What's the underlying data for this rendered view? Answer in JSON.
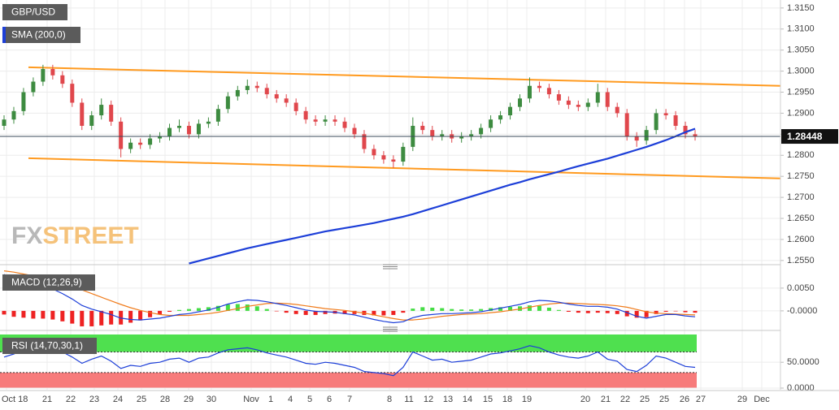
{
  "chart_data": [
    {
      "type": "candlestick",
      "title": "GBP/USD",
      "open": [
        1.287,
        1.2885,
        1.2905,
        1.295,
        1.2975,
        1.3005,
        1.299,
        1.297,
        1.2925,
        1.287,
        1.2895,
        1.292,
        1.288,
        1.2815,
        1.283,
        1.2825,
        1.284,
        1.2845,
        1.2865,
        1.287,
        1.285,
        1.2875,
        1.288,
        1.291,
        1.294,
        1.2955,
        1.2965,
        1.296,
        1.2945,
        1.2935,
        1.2925,
        1.2905,
        1.2885,
        1.288,
        1.2885,
        1.288,
        1.2865,
        1.285,
        1.2815,
        1.28,
        1.279,
        1.2785,
        1.282,
        1.287,
        1.286,
        1.2845,
        1.285,
        1.284,
        1.2845,
        1.285,
        1.2865,
        1.2885,
        1.2895,
        1.2915,
        1.2935,
        1.2965,
        1.296,
        1.2945,
        1.293,
        1.292,
        1.2915,
        1.2925,
        1.295,
        1.2915,
        1.29,
        1.2845,
        1.2835,
        1.286,
        1.29,
        1.2895,
        1.287,
        1.285
      ],
      "high": [
        1.2895,
        1.2915,
        1.296,
        1.2985,
        1.3015,
        1.3015,
        1.3,
        1.298,
        1.2935,
        1.2905,
        1.2935,
        1.293,
        1.289,
        1.284,
        1.284,
        1.285,
        1.2855,
        1.2875,
        1.2885,
        1.288,
        1.2885,
        1.289,
        1.292,
        1.295,
        1.2965,
        1.298,
        1.2975,
        1.297,
        1.2955,
        1.2945,
        1.2935,
        1.2915,
        1.2895,
        1.2895,
        1.2895,
        1.289,
        1.2875,
        1.286,
        1.2825,
        1.281,
        1.28,
        1.283,
        1.289,
        1.288,
        1.287,
        1.286,
        1.286,
        1.2855,
        1.286,
        1.2875,
        1.2895,
        1.2905,
        1.2925,
        1.2945,
        1.2985,
        1.2975,
        1.297,
        1.2955,
        1.294,
        1.293,
        1.2935,
        1.297,
        1.296,
        1.2925,
        1.291,
        1.2855,
        1.287,
        1.291,
        1.291,
        1.2905,
        1.288,
        1.286
      ],
      "low": [
        1.286,
        1.2875,
        1.2895,
        1.294,
        1.2965,
        1.298,
        1.296,
        1.2915,
        1.286,
        1.286,
        1.2885,
        1.287,
        1.2795,
        1.2805,
        1.2815,
        1.2815,
        1.283,
        1.2835,
        1.2855,
        1.284,
        1.284,
        1.2865,
        1.287,
        1.29,
        1.293,
        1.2945,
        1.295,
        1.2935,
        1.2925,
        1.2915,
        1.2895,
        1.2875,
        1.287,
        1.287,
        1.287,
        1.2855,
        1.284,
        1.2805,
        1.279,
        1.278,
        1.277,
        1.2775,
        1.281,
        1.285,
        1.2835,
        1.2835,
        1.283,
        1.283,
        1.2835,
        1.284,
        1.2855,
        1.2875,
        1.2885,
        1.2905,
        1.2925,
        1.295,
        1.2935,
        1.292,
        1.291,
        1.2905,
        1.2905,
        1.2915,
        1.2905,
        1.289,
        1.2835,
        1.282,
        1.2825,
        1.285,
        1.2885,
        1.286,
        1.284,
        1.2835
      ],
      "close": [
        1.2885,
        1.2905,
        1.295,
        1.2975,
        1.3005,
        1.299,
        1.297,
        1.2925,
        1.287,
        1.2895,
        1.292,
        1.288,
        1.2815,
        1.283,
        1.2825,
        1.284,
        1.2845,
        1.2865,
        1.287,
        1.285,
        1.2875,
        1.288,
        1.291,
        1.294,
        1.2955,
        1.2965,
        1.296,
        1.2945,
        1.2935,
        1.2925,
        1.2905,
        1.2885,
        1.288,
        1.2885,
        1.288,
        1.2865,
        1.285,
        1.2815,
        1.28,
        1.279,
        1.2785,
        1.282,
        1.287,
        1.286,
        1.2845,
        1.285,
        1.284,
        1.2845,
        1.285,
        1.2865,
        1.2885,
        1.2895,
        1.2915,
        1.2935,
        1.2965,
        1.296,
        1.2945,
        1.293,
        1.292,
        1.2915,
        1.2925,
        1.295,
        1.2915,
        1.29,
        1.2845,
        1.2835,
        1.286,
        1.29,
        1.2895,
        1.287,
        1.285,
        1.2845
      ],
      "up_color": "#3d8b40",
      "down_color": "#e0474c",
      "overlay": {
        "name": "SMA (200,0)",
        "color": "#1d3fd8",
        "values": [
          null,
          null,
          null,
          null,
          null,
          null,
          null,
          null,
          null,
          null,
          null,
          null,
          null,
          null,
          null,
          null,
          null,
          null,
          null,
          1.2543,
          1.2549,
          1.2555,
          1.2561,
          1.2567,
          1.2573,
          1.2579,
          1.2584,
          1.2589,
          1.2594,
          1.2599,
          1.2604,
          1.2609,
          1.2614,
          1.2619,
          1.2623,
          1.2627,
          1.2631,
          1.2635,
          1.2639,
          1.2644,
          1.2649,
          1.2654,
          1.266,
          1.2667,
          1.2674,
          1.2681,
          1.2688,
          1.2695,
          1.2702,
          1.2709,
          1.2716,
          1.2723,
          1.273,
          1.2736,
          1.2743,
          1.2749,
          1.2755,
          1.2761,
          1.2768,
          1.2774,
          1.278,
          1.2786,
          1.2792,
          1.2799,
          1.2806,
          1.2813,
          1.282,
          1.2828,
          1.2836,
          1.2845,
          1.2855,
          1.2863
        ]
      },
      "channel": {
        "color": "#ff9a1f",
        "upper": [
          1.3009,
          1.2965
        ],
        "lower": [
          1.2793,
          1.2745
        ]
      },
      "last_price": 1.28448,
      "ylim": [
        1.2542,
        1.3169
      ],
      "yticks": [
        {
          "value": 1.255,
          "label": "1.2550"
        },
        {
          "value": 1.26,
          "label": "1.2600"
        },
        {
          "value": 1.265,
          "label": "1.2650"
        },
        {
          "value": 1.27,
          "label": "1.2700"
        },
        {
          "value": 1.275,
          "label": "1.2750"
        },
        {
          "value": 1.28,
          "label": "1.2800"
        },
        {
          "value": 1.285,
          "label": "1.2850"
        },
        {
          "value": 1.29,
          "label": "1.2900"
        },
        {
          "value": 1.295,
          "label": "1.2950"
        },
        {
          "value": 1.3,
          "label": "1.3000"
        },
        {
          "value": 1.305,
          "label": "1.3050"
        },
        {
          "value": 1.31,
          "label": "1.3100"
        },
        {
          "value": 1.315,
          "label": "1.3150"
        }
      ],
      "grid": true,
      "watermark": [
        "FX",
        "STREET"
      ]
    },
    {
      "type": "macd",
      "title": "MACD (12,26,9)",
      "macd": [
        0.008,
        0.0072,
        0.0066,
        0.006,
        0.0055,
        0.0048,
        0.0038,
        0.0026,
        0.0012,
        0.0004,
        -0.0002,
        -0.0008,
        -0.0016,
        -0.0019,
        -0.002,
        -0.0018,
        -0.0016,
        -0.0012,
        -0.0008,
        -0.0006,
        -0.0002,
        0.0002,
        0.0008,
        0.0015,
        0.002,
        0.0024,
        0.0023,
        0.002,
        0.0016,
        0.0012,
        0.0007,
        0.0002,
        -0.0001,
        -0.0002,
        -0.0003,
        -0.0006,
        -0.0009,
        -0.0014,
        -0.0019,
        -0.0023,
        -0.0026,
        -0.0024,
        -0.0015,
        -0.001,
        -0.0008,
        -0.0006,
        -0.0006,
        -0.0005,
        -0.0004,
        -0.0002,
        0.0002,
        0.0006,
        0.001,
        0.0014,
        0.002,
        0.0023,
        0.0022,
        0.0019,
        0.0015,
        0.0012,
        0.001,
        0.001,
        0.0008,
        0.0004,
        -0.0004,
        -0.0012,
        -0.0016,
        -0.0012,
        -0.0008,
        -0.0008,
        -0.0011,
        -0.0013
      ],
      "signal": [
        0.0088,
        0.0085,
        0.0081,
        0.0077,
        0.0072,
        0.0067,
        0.0061,
        0.0054,
        0.0046,
        0.0038,
        0.003,
        0.0022,
        0.0014,
        0.0007,
        0.0001,
        -0.0004,
        -0.0008,
        -0.001,
        -0.001,
        -0.001,
        -0.0008,
        -0.0006,
        -0.0003,
        0.0001,
        0.0005,
        0.001,
        0.0013,
        0.0016,
        0.0017,
        0.0016,
        0.0014,
        0.0011,
        0.0008,
        0.0005,
        0.0003,
        0.0001,
        -0.0002,
        -0.0005,
        -0.0009,
        -0.0013,
        -0.0017,
        -0.002,
        -0.002,
        -0.0018,
        -0.0015,
        -0.0012,
        -0.001,
        -0.0008,
        -0.0007,
        -0.0006,
        -0.0004,
        -0.0002,
        0.0001,
        0.0004,
        0.0008,
        0.0012,
        0.0015,
        0.0017,
        0.0017,
        0.0016,
        0.0015,
        0.0014,
        0.0013,
        0.0011,
        0.0008,
        0.0003,
        -0.0002,
        -0.0005,
        -0.0006,
        -0.0007,
        -0.0008,
        -0.0009
      ],
      "histogram": [
        -0.0008,
        -0.0013,
        -0.0015,
        -0.0017,
        -0.0017,
        -0.0019,
        -0.0023,
        -0.0028,
        -0.0034,
        -0.0034,
        -0.0032,
        -0.003,
        -0.003,
        -0.0026,
        -0.0021,
        -0.0014,
        -0.0008,
        -0.0002,
        0.0002,
        0.0004,
        0.0006,
        0.0008,
        0.0011,
        0.0014,
        0.0015,
        0.0014,
        0.001,
        0.0004,
        -0.0001,
        -0.0004,
        -0.0007,
        -0.0009,
        -0.0009,
        -0.0007,
        -0.0006,
        -0.0007,
        -0.0007,
        -0.0009,
        -0.001,
        -0.001,
        -0.0009,
        -0.0004,
        0.0005,
        0.0008,
        0.0007,
        0.0006,
        0.0004,
        0.0003,
        0.0003,
        0.0004,
        0.0006,
        0.0008,
        0.0009,
        0.001,
        0.0012,
        0.0011,
        0.0007,
        0.0002,
        -0.0002,
        -0.0004,
        -0.0005,
        -0.0004,
        -0.0005,
        -0.0007,
        -0.0012,
        -0.0015,
        -0.0014,
        -0.0007,
        -0.0002,
        -0.0001,
        -0.0003,
        -0.0004
      ],
      "macd_color": "#1d3fd8",
      "signal_color": "#f07c1c",
      "hist_up_color": "#44dd44",
      "hist_down_color": "#ee2222",
      "ylim": [
        -0.0043,
        0.0089
      ],
      "yticks": [
        {
          "value": 0.005,
          "label": "0.0050"
        },
        {
          "value": 0,
          "label": "-0.0000"
        }
      ],
      "grid": true
    },
    {
      "type": "rsi",
      "title": "RSI (14,70,30,1)",
      "values": [
        60,
        66,
        74,
        78,
        82,
        76,
        70,
        60,
        48,
        56,
        62,
        52,
        38,
        44,
        42,
        48,
        50,
        56,
        58,
        50,
        58,
        60,
        68,
        74,
        76,
        78,
        74,
        68,
        64,
        60,
        54,
        48,
        46,
        50,
        48,
        44,
        40,
        32,
        30,
        28,
        24,
        40,
        70,
        62,
        54,
        56,
        50,
        52,
        54,
        60,
        66,
        68,
        72,
        76,
        82,
        78,
        70,
        64,
        60,
        58,
        62,
        70,
        56,
        52,
        36,
        32,
        44,
        62,
        58,
        50,
        42,
        40
      ],
      "color": "#1d3fd8",
      "upper_band": 70,
      "lower_band": 30,
      "upper_color": "#4fe04f",
      "lower_color": "#f77b7b",
      "ylim": [
        0,
        110
      ],
      "yticks": [
        {
          "value": 50,
          "label": "50.0000"
        },
        {
          "value": 0,
          "label": "0.0000"
        }
      ],
      "grid": true,
      "x_tick_labels": [
        "Oct 18",
        "21",
        "22",
        "23",
        "24",
        "25",
        "28",
        "29",
        "30",
        "Nov",
        "1",
        "4",
        "5",
        "6",
        "7",
        "8",
        "11",
        "12",
        "13",
        "14",
        "15",
        "18",
        "19",
        "20",
        "21",
        "22",
        "25",
        "25",
        "26",
        "27",
        "29",
        "Dec"
      ]
    }
  ]
}
